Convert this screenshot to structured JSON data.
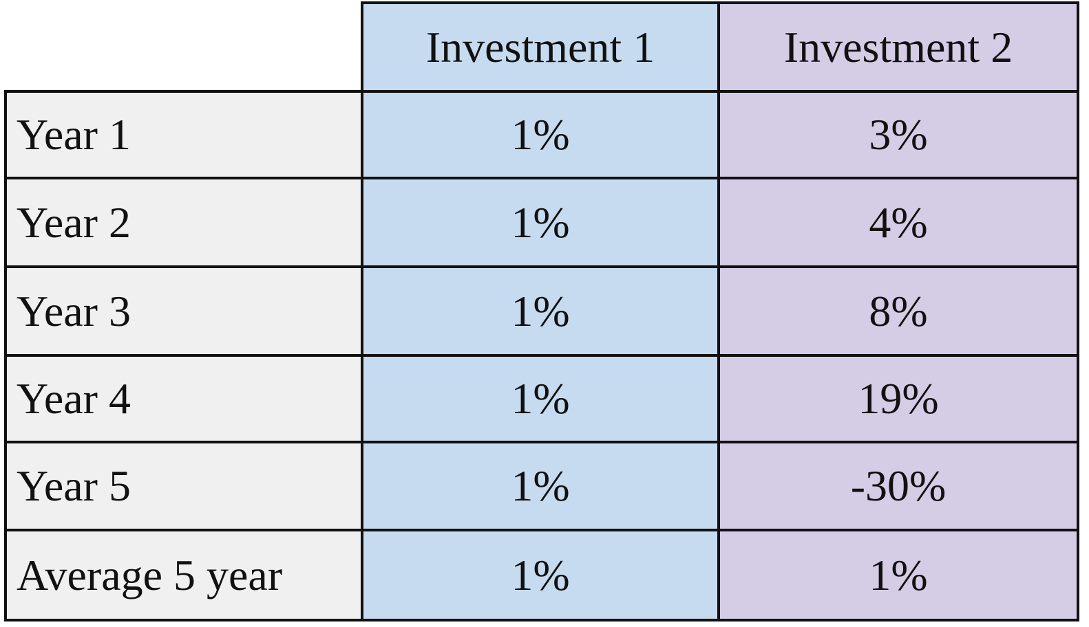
{
  "table": {
    "header": [
      "Investment 1",
      "Investment 2"
    ],
    "rows": [
      [
        "Year 1",
        "1%",
        "3%"
      ],
      [
        "Year 2",
        "1%",
        "4%"
      ],
      [
        "Year 3",
        "1%",
        "8%"
      ],
      [
        "Year 4",
        "1%",
        "19%"
      ],
      [
        "Year 5",
        "1%",
        "-30%"
      ],
      [
        "Average 5 year",
        "1%",
        "1%"
      ]
    ]
  }
}
